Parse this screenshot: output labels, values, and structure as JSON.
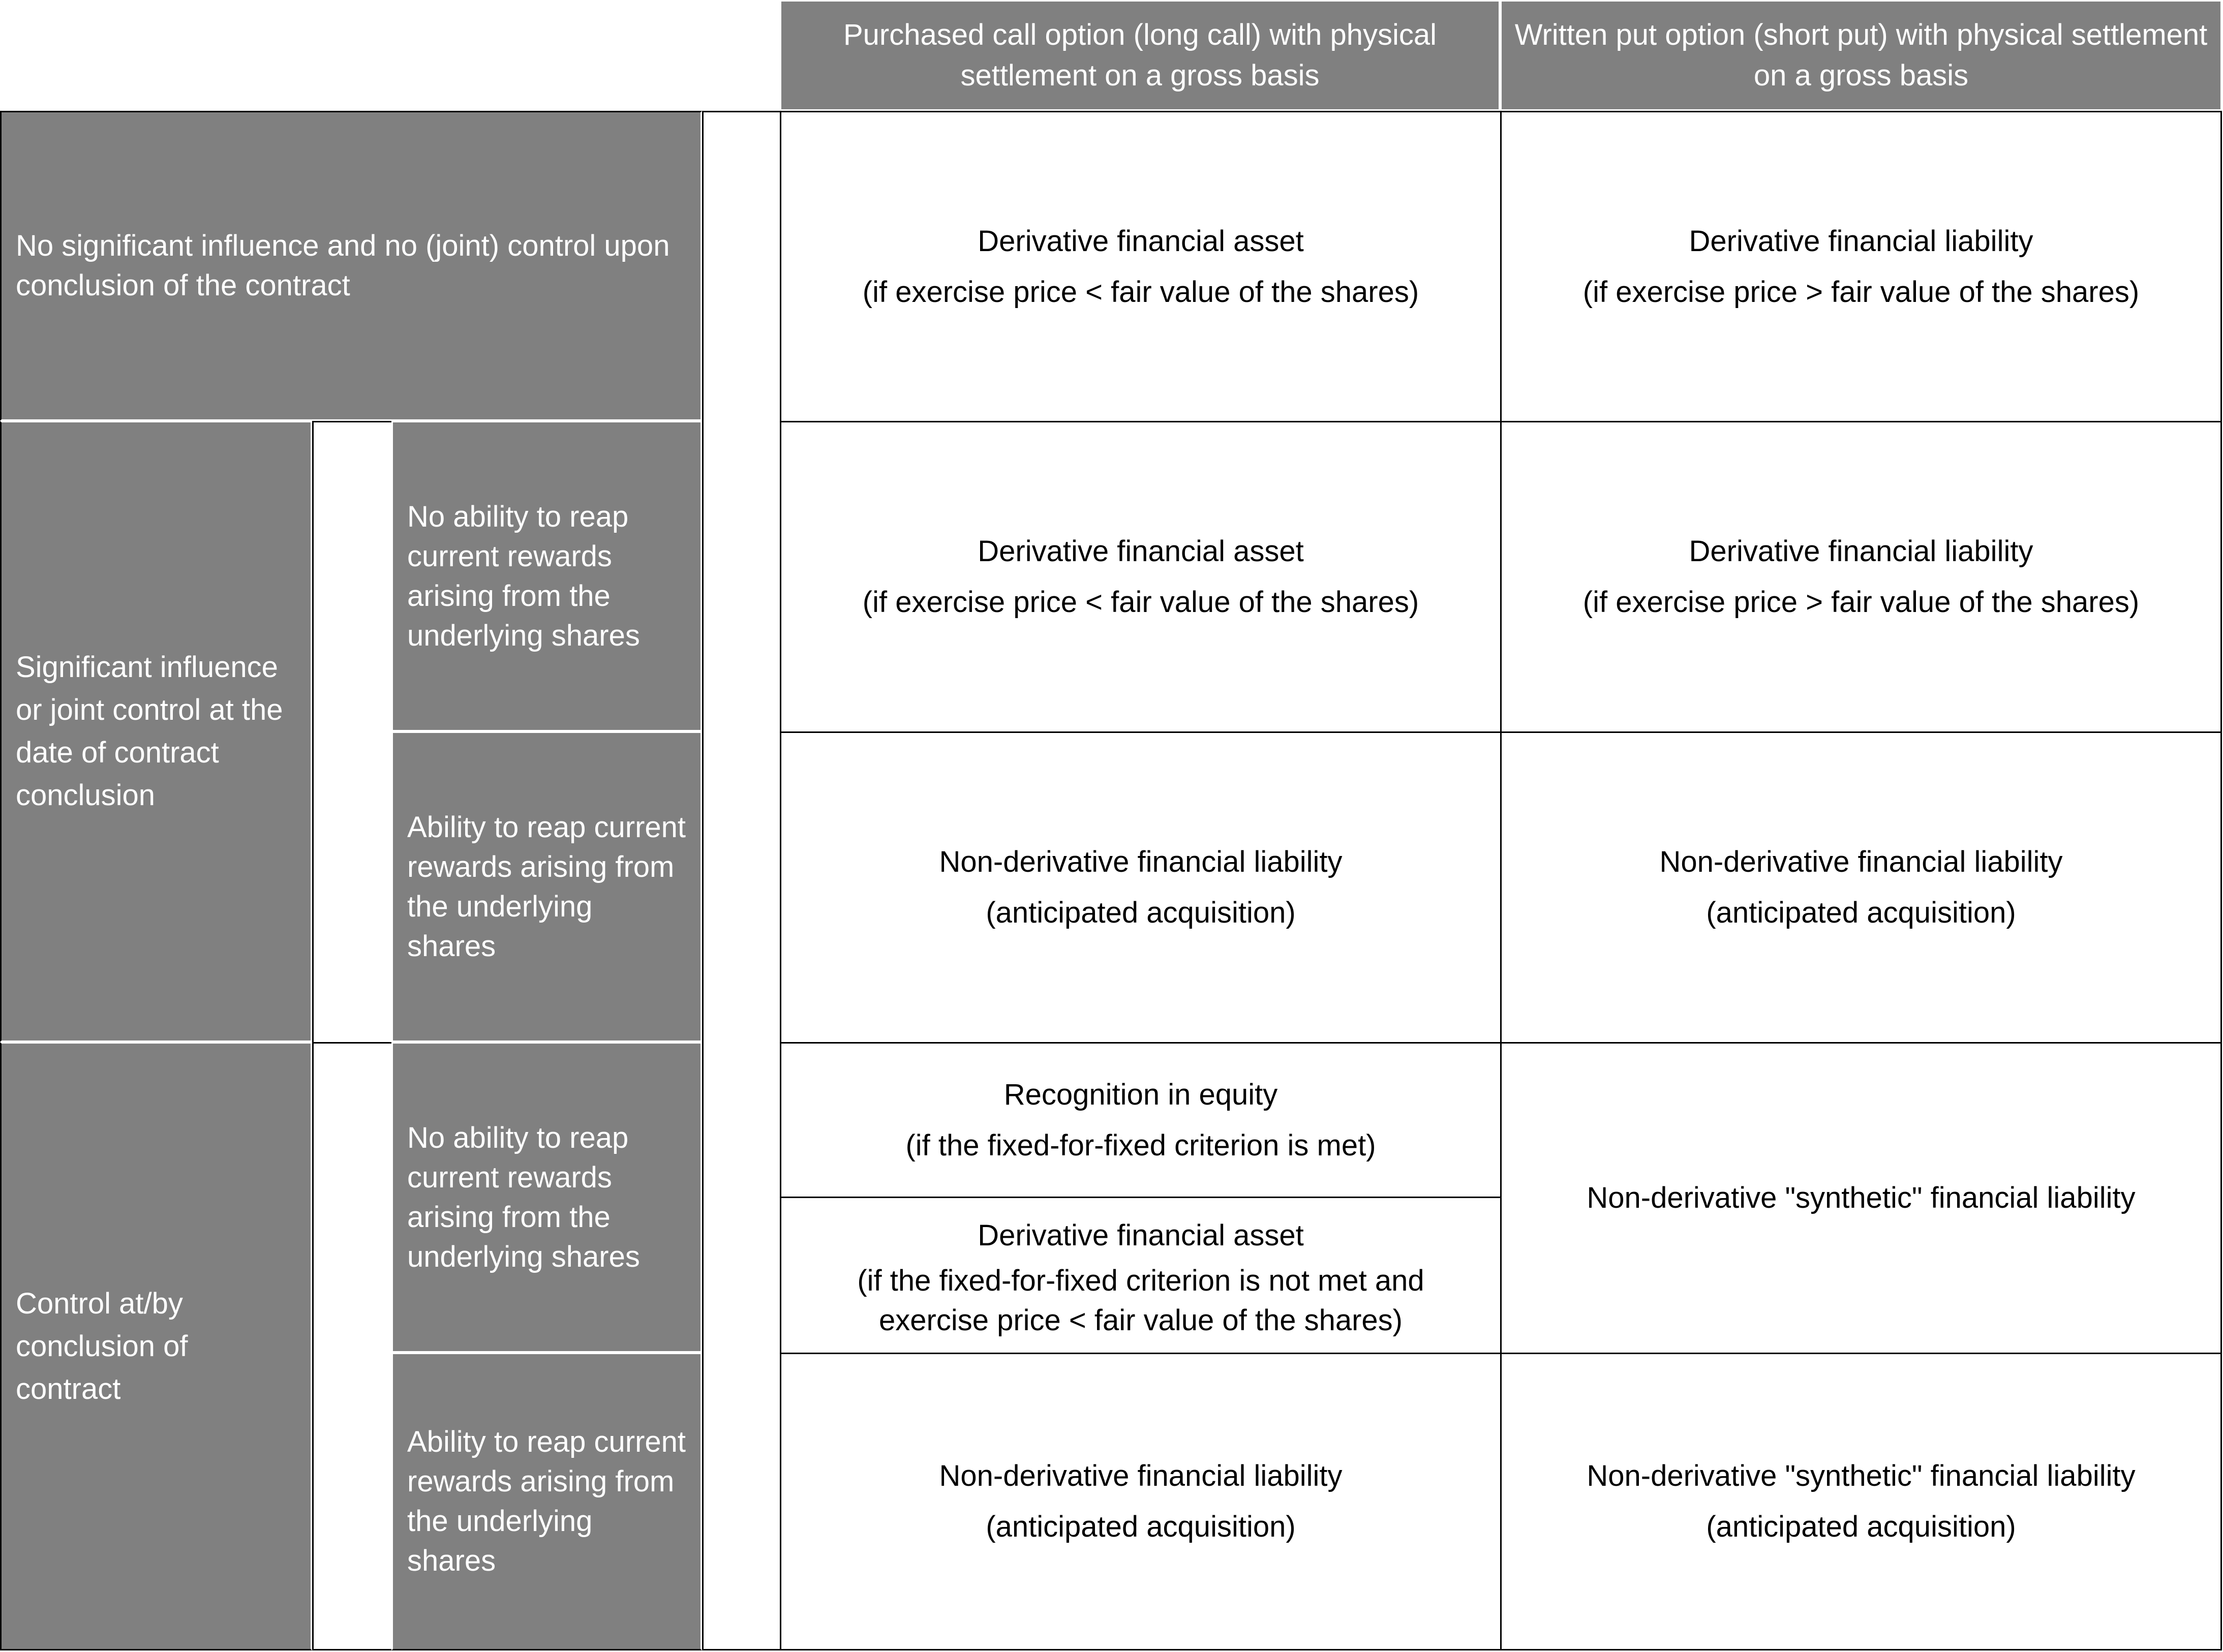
{
  "header": {
    "col1": "Purchased call option (long call) with physical settlement on a gross basis",
    "col2": "Written put option (short put) with physical settlement on a gross basis"
  },
  "rows": {
    "no_influence": {
      "label": "No significant influence and no (joint) control upon conclusion of the contract",
      "call": [
        "Derivative financial asset",
        "(if exercise price < fair value of the shares)"
      ],
      "put": [
        "Derivative financial liability",
        "(if exercise price > fair value of the shares)"
      ]
    },
    "significant": {
      "label": "Significant influence or joint control at the date of contract conclusion",
      "no_rewards": {
        "label": "No ability to reap current rewards arising from the underlying shares",
        "call": [
          "Derivative financial asset",
          "(if exercise price < fair value of the shares)"
        ],
        "put": [
          "Derivative financial liability",
          "(if exercise price > fair value of the shares)"
        ]
      },
      "rewards": {
        "label": "Ability to reap current rewards arising from the underlying shares",
        "call": [
          "Non-derivative financial liability",
          "(anticipated acquisition)"
        ],
        "put": [
          "Non-derivative financial liability",
          "(anticipated acquisition)"
        ]
      }
    },
    "control": {
      "label": "Control at/by conclusion of contract",
      "no_rewards": {
        "label": "No ability to reap current rewards arising from the underlying shares",
        "call_a": [
          "Recognition in equity",
          "(if the fixed-for-fixed criterion is met)"
        ],
        "call_b": [
          "Derivative financial asset",
          "(if the fixed-for-fixed criterion is not met and exercise price < fair value of the shares)"
        ],
        "put": "Non-derivative \"synthetic\" financial liability"
      },
      "rewards": {
        "label": "Ability to reap current rewards arising from the underlying shares",
        "call": [
          "Non-derivative financial liability",
          "(anticipated acquisition)"
        ],
        "put": [
          "Non-derivative \"synthetic\" financial liability",
          "(anticipated acquisition)"
        ]
      }
    }
  }
}
